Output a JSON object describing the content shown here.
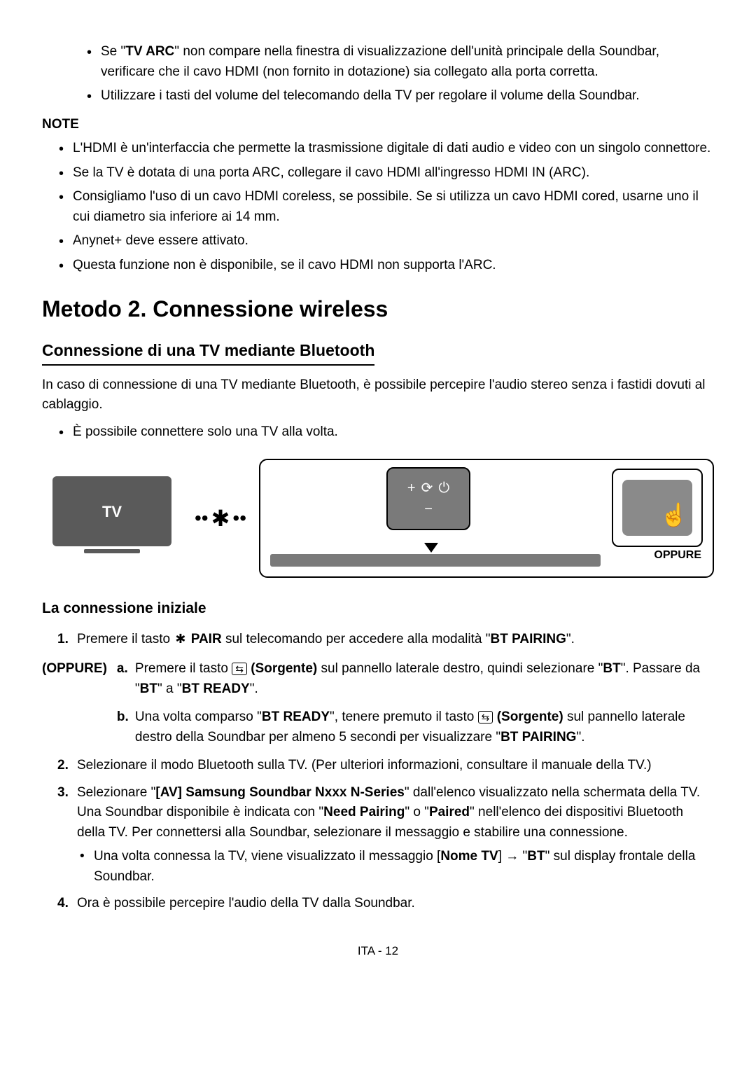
{
  "intro": {
    "bullets": [
      {
        "pre": "Se \"",
        "b1": "TV ARC",
        "post": "\" non compare nella finestra di visualizzazione dell'unità principale della Soundbar, verificare che il cavo HDMI (non fornito in dotazione) sia collegato alla porta corretta."
      },
      {
        "text": "Utilizzare i tasti del volume del telecomando della TV per regolare il volume della Soundbar."
      }
    ]
  },
  "note": {
    "label": "NOTE",
    "bullets": [
      "L'HDMI è un'interfaccia che permette la trasmissione digitale di dati audio e video con un singolo connettore.",
      "Se la TV è dotata di una porta ARC, collegare il cavo HDMI all'ingresso HDMI IN (ARC).",
      "Consigliamo l'uso di un cavo HDMI coreless, se possibile. Se si utilizza un cavo HDMI cored, usarne uno il cui diametro sia inferiore ai 14 mm.",
      "Anynet+ deve essere attivato.",
      "Questa funzione non è disponibile, se il cavo HDMI non supporta l'ARC."
    ]
  },
  "h1": "Metodo 2. Connessione wireless",
  "h2": "Connessione di una TV mediante Bluetooth",
  "intro2": "In caso di connessione di una TV mediante Bluetooth, è possibile percepire l'audio stereo senza i fastidi dovuti al cablaggio.",
  "intro2_bullet": "È possibile connettere solo una TV alla volta.",
  "diagram": {
    "tv_label": "TV",
    "oppure": "OPPURE"
  },
  "h3": "La connessione iniziale",
  "steps": {
    "s1_pre": "Premere il tasto ",
    "s1_b1": "PAIR",
    "s1_mid": " sul telecomando per accedere alla modalità \"",
    "s1_b2": "BT PAIRING",
    "s1_post": "\".",
    "oppure_tag": "(OPPURE)",
    "a_pre": "Premere il tasto ",
    "a_b1": "(Sorgente)",
    "a_mid": " sul pannello laterale destro, quindi selezionare \"",
    "a_b2": "BT",
    "a_mid2": "\". Passare da \"",
    "a_b3": "BT",
    "a_mid3": "\" a \"",
    "a_b4": "BT READY",
    "a_post": "\".",
    "b_pre": "Una volta comparso \"",
    "b_b1": "BT READY",
    "b_mid": "\", tenere premuto il tasto ",
    "b_b2": "(Sorgente)",
    "b_mid2": " sul pannello laterale destro della Soundbar per almeno 5 secondi per visualizzare \"",
    "b_b3": "BT PAIRING",
    "b_post": "\".",
    "s2": "Selezionare il modo Bluetooth sulla TV. (Per ulteriori informazioni, consultare il manuale della TV.)",
    "s3_pre": "Selezionare \"",
    "s3_b1": "[AV] Samsung Soundbar Nxxx N-Series",
    "s3_mid": "\" dall'elenco visualizzato nella schermata della TV. Una Soundbar disponibile è indicata con \"",
    "s3_b2": "Need Pairing",
    "s3_mid2": "\" o \"",
    "s3_b3": "Paired",
    "s3_post": "\" nell'elenco dei dispositivi Bluetooth della TV. Per connettersi alla Soundbar, selezionare il messaggio e stabilire una connessione.",
    "s3_sub_pre": "Una volta connessa la TV, viene visualizzato il messaggio [",
    "s3_sub_b1": "Nome TV",
    "s3_sub_mid": "] → \"",
    "s3_sub_b2": "BT",
    "s3_sub_post": "\" sul display frontale della Soundbar.",
    "s4": "Ora è possibile percepire l'audio della TV dalla Soundbar."
  },
  "footer": "ITA - 12"
}
